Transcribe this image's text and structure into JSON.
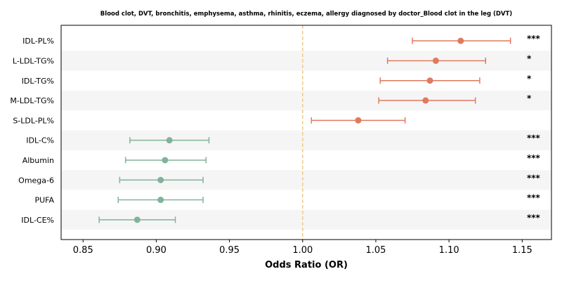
{
  "chart_data": {
    "type": "forest",
    "title": "Blood clot, DVT, bronchitis, emphysema, asthma, rhinitis, eczema, allergy diagnosed by doctor_Blood clot in the leg (DVT)",
    "xlabel": "Odds Ratio (OR)",
    "xlim": [
      0.835,
      1.17
    ],
    "xticks": [
      "0.85",
      "0.90",
      "0.95",
      "1.00",
      "1.05",
      "1.10",
      "1.15"
    ],
    "reference_line": 1.0,
    "grid": false,
    "rows": [
      {
        "label": "IDL-PL%",
        "or": 1.108,
        "lo": 1.075,
        "hi": 1.142,
        "sig": "***",
        "direction": "risk"
      },
      {
        "label": "L-LDL-TG%",
        "or": 1.091,
        "lo": 1.058,
        "hi": 1.125,
        "sig": "*",
        "direction": "risk"
      },
      {
        "label": "IDL-TG%",
        "or": 1.087,
        "lo": 1.053,
        "hi": 1.121,
        "sig": "*",
        "direction": "risk"
      },
      {
        "label": "M-LDL-TG%",
        "or": 1.084,
        "lo": 1.052,
        "hi": 1.118,
        "sig": "*",
        "direction": "risk"
      },
      {
        "label": "S-LDL-PL%",
        "or": 1.038,
        "lo": 1.006,
        "hi": 1.07,
        "sig": "",
        "direction": "risk"
      },
      {
        "label": "IDL-C%",
        "or": 0.909,
        "lo": 0.882,
        "hi": 0.936,
        "sig": "***",
        "direction": "protective"
      },
      {
        "label": "Albumin",
        "or": 0.906,
        "lo": 0.879,
        "hi": 0.934,
        "sig": "***",
        "direction": "protective"
      },
      {
        "label": "Omega-6",
        "or": 0.903,
        "lo": 0.875,
        "hi": 0.932,
        "sig": "***",
        "direction": "protective"
      },
      {
        "label": "PUFA",
        "or": 0.903,
        "lo": 0.874,
        "hi": 0.932,
        "sig": "***",
        "direction": "protective"
      },
      {
        "label": "IDL-CE%",
        "or": 0.887,
        "lo": 0.861,
        "hi": 0.913,
        "sig": "***",
        "direction": "protective"
      }
    ],
    "colors": {
      "risk": "#e07a5f",
      "protective": "#81b29a",
      "reference": "#f2cc8f",
      "band": "#f5f5f5"
    }
  }
}
